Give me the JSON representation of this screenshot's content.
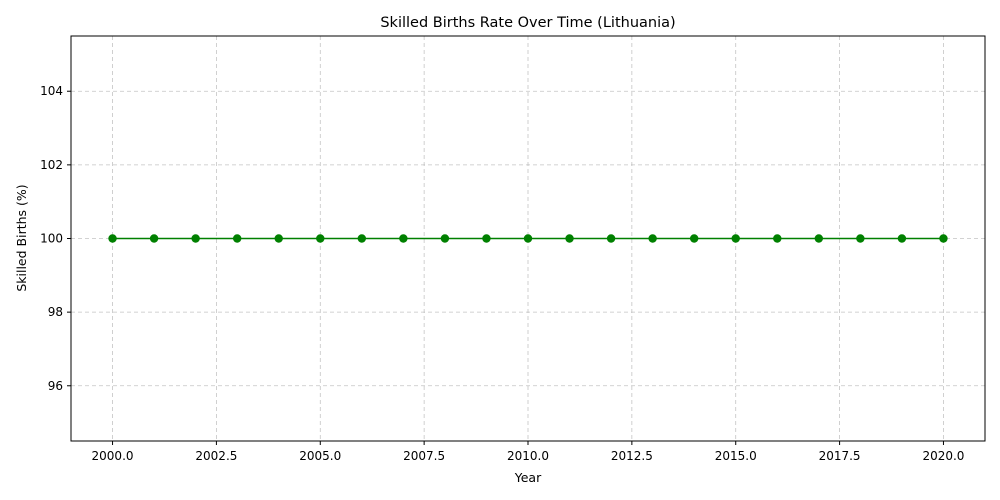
{
  "chart_data": {
    "type": "line",
    "title": "Skilled Births Rate Over Time (Lithuania)",
    "xlabel": "Year",
    "ylabel": "Skilled Births (%)",
    "xlim": [
      1999.0,
      2021.0
    ],
    "ylim": [
      94.5,
      105.5
    ],
    "xticks": [
      2000.0,
      2002.5,
      2005.0,
      2007.5,
      2010.0,
      2012.5,
      2015.0,
      2017.5,
      2020.0
    ],
    "xtick_labels": [
      "2000.0",
      "2002.5",
      "2005.0",
      "2007.5",
      "2010.0",
      "2012.5",
      "2015.0",
      "2017.5",
      "2020.0"
    ],
    "yticks": [
      96,
      98,
      100,
      102,
      104
    ],
    "ytick_labels": [
      "96",
      "98",
      "100",
      "102",
      "104"
    ],
    "grid": true,
    "series": [
      {
        "color": "#008000",
        "marker": "circle",
        "x": [
          2000,
          2001,
          2002,
          2003,
          2004,
          2005,
          2006,
          2007,
          2008,
          2009,
          2010,
          2011,
          2012,
          2013,
          2014,
          2015,
          2016,
          2017,
          2018,
          2019,
          2020
        ],
        "values": [
          100,
          100,
          100,
          100,
          100,
          100,
          100,
          100,
          100,
          100,
          100,
          100,
          100,
          100,
          100,
          100,
          100,
          100,
          100,
          100,
          100
        ]
      }
    ]
  }
}
